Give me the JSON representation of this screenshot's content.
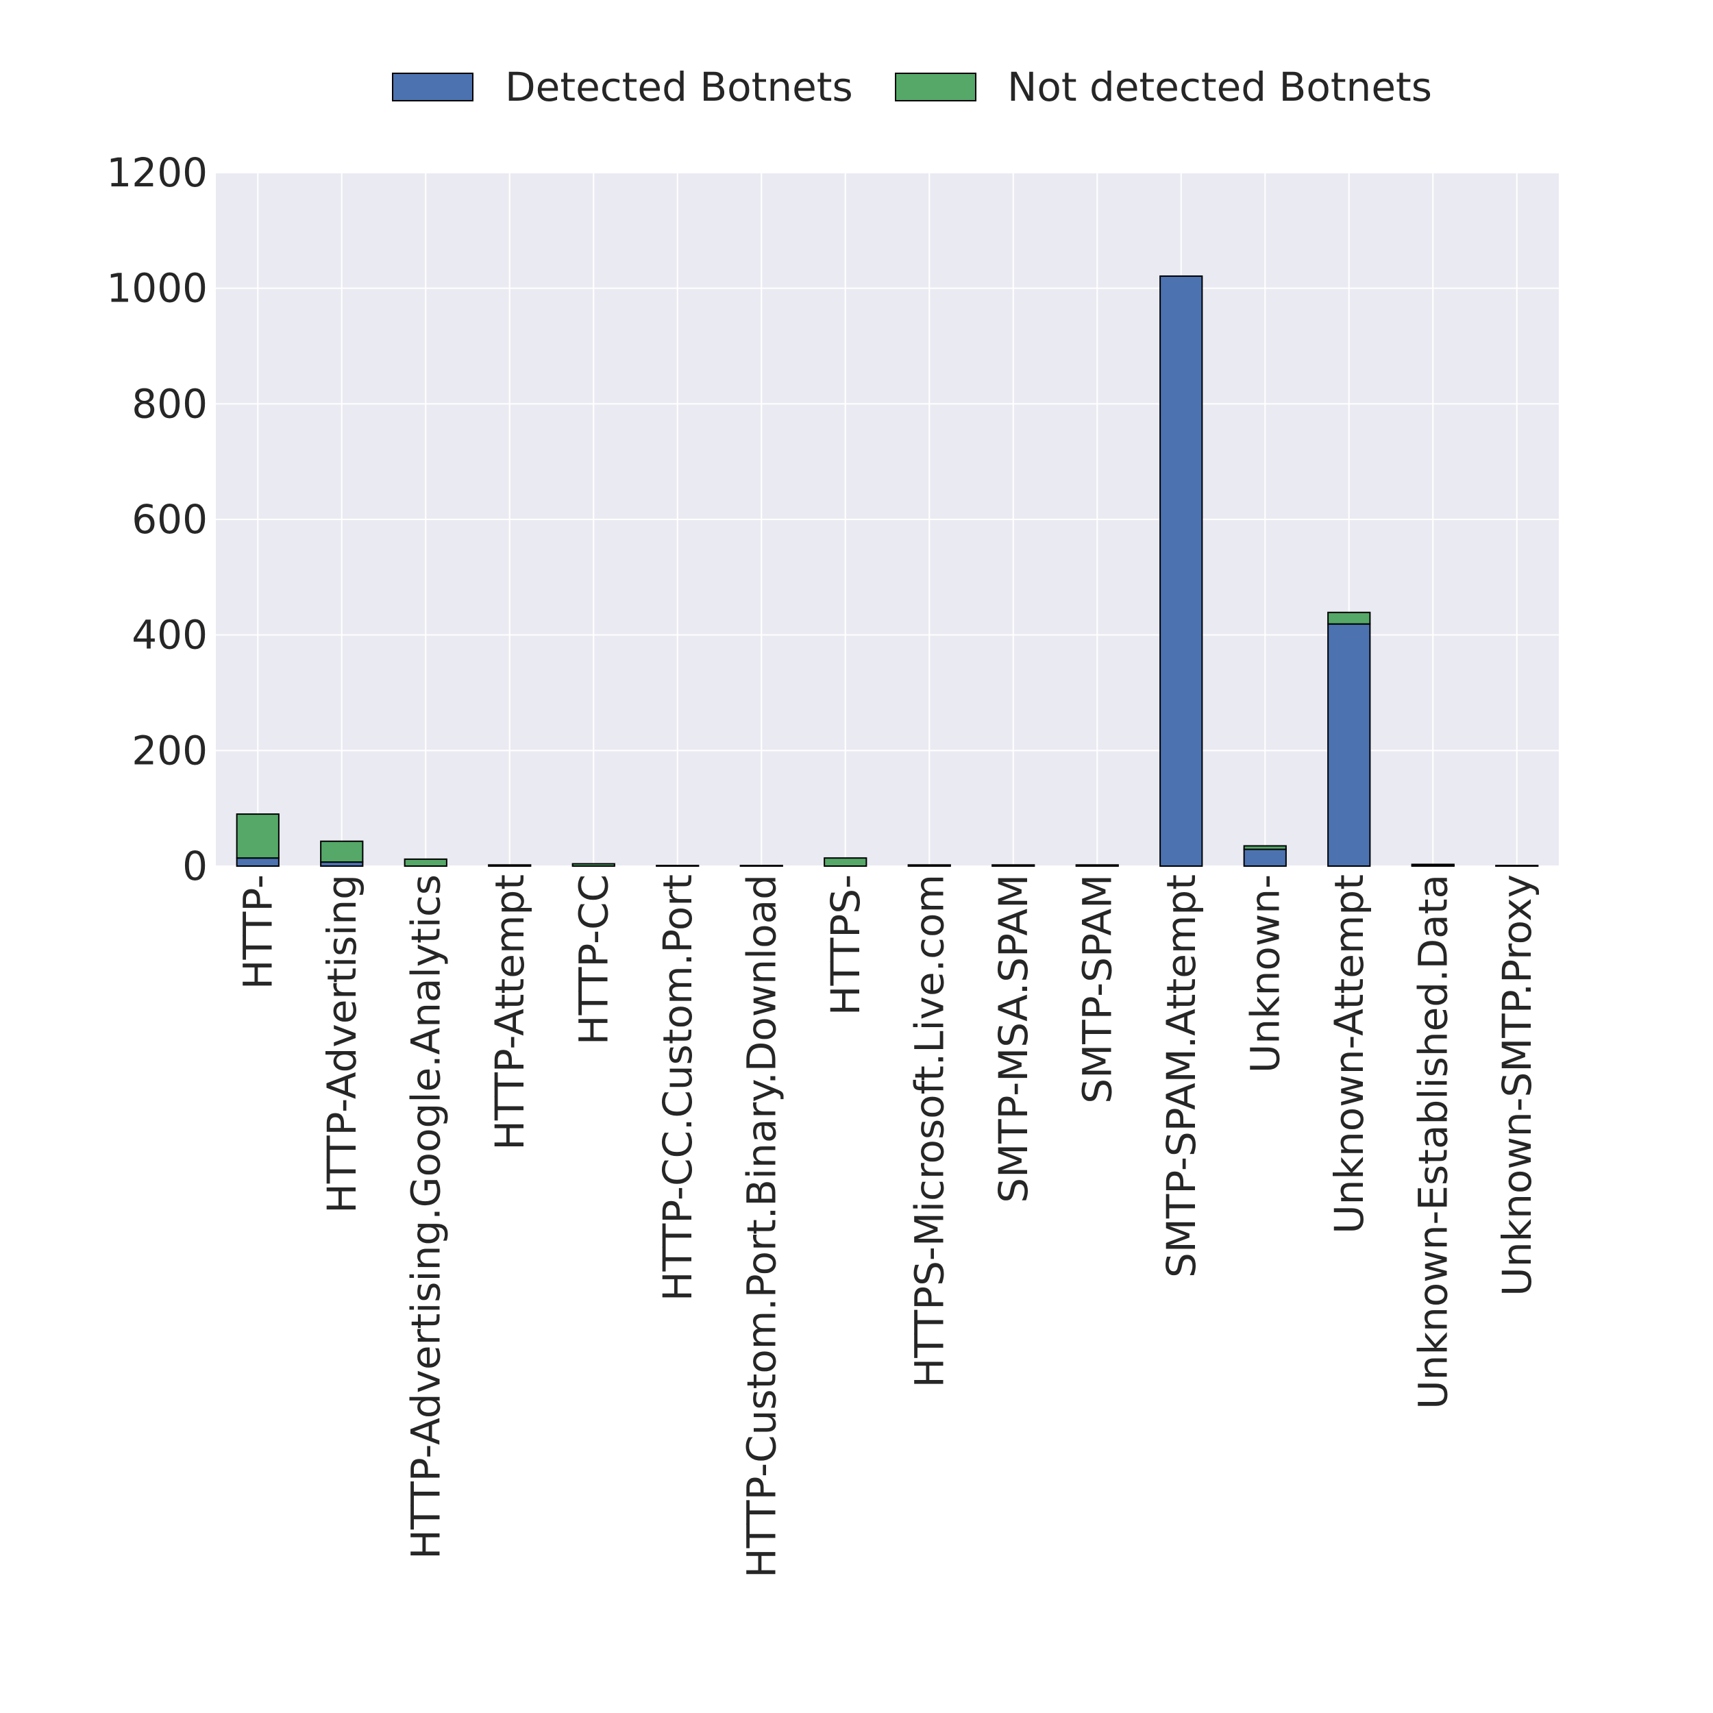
{
  "chart_data": {
    "type": "bar",
    "stacked": true,
    "categories": [
      "HTTP-",
      "HTTP-Advertising",
      "HTTP-Advertising.Google.Analytics",
      "HTTP-Attempt",
      "HTTP-CC",
      "HTTP-CC.Custom.Port",
      "HTTP-Custom.Port.Binary.Download",
      "HTTPS-",
      "HTTPS-Microsoft.Live.com",
      "SMTP-MSA.SPAM",
      "SMTP-SPAM",
      "SMTP-SPAM.Attempt",
      "Unknown-",
      "Unknown-Attempt",
      "Unknown-Established.Data",
      "Unknown-SMTP.Proxy"
    ],
    "series": [
      {
        "name": "Detected Botnets",
        "color": "#4c72b0",
        "values": [
          14,
          7,
          0,
          0,
          0,
          0,
          0,
          0,
          0,
          0,
          0,
          1021,
          29,
          419,
          1,
          0
        ]
      },
      {
        "name": "Not detected Botnets",
        "color": "#55a868",
        "values": [
          76,
          36,
          12,
          2,
          4,
          1,
          1,
          14,
          2,
          2,
          2,
          0,
          6,
          20,
          2,
          1
        ]
      }
    ],
    "title": "",
    "xlabel": "",
    "ylabel": "",
    "ylim": [
      0,
      1200
    ],
    "yticks": [
      0,
      200,
      400,
      600,
      800,
      1000,
      1200
    ],
    "grid": true,
    "legend_position": "top-center",
    "background_color": "#eaeaf2"
  }
}
